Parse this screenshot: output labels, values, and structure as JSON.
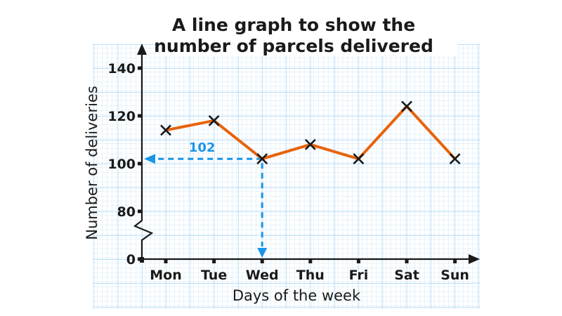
{
  "chart_data": {
    "type": "line",
    "title": "A line graph to show the number of parcels delivered",
    "title_lines": [
      "A line graph to show the",
      "number of parcels delivered"
    ],
    "xlabel": "Days of the week",
    "ylabel": "Number of deliveries",
    "categories": [
      "Mon",
      "Tue",
      "Wed",
      "Thu",
      "Fri",
      "Sat",
      "Sun"
    ],
    "series": [
      {
        "name": "Parcels delivered",
        "values": [
          114,
          118,
          102,
          108,
          102,
          124,
          102
        ],
        "color": "#e8630a",
        "marker": "x"
      }
    ],
    "y_ticks": [
      0,
      80,
      100,
      120,
      140
    ],
    "ylim": [
      0,
      140
    ],
    "y_axis_break": true,
    "grid": true,
    "grid_color": "#a8d4f0",
    "annotation": {
      "label": "102",
      "category": "Wed",
      "value": 102,
      "color": "#1a96e8"
    }
  }
}
